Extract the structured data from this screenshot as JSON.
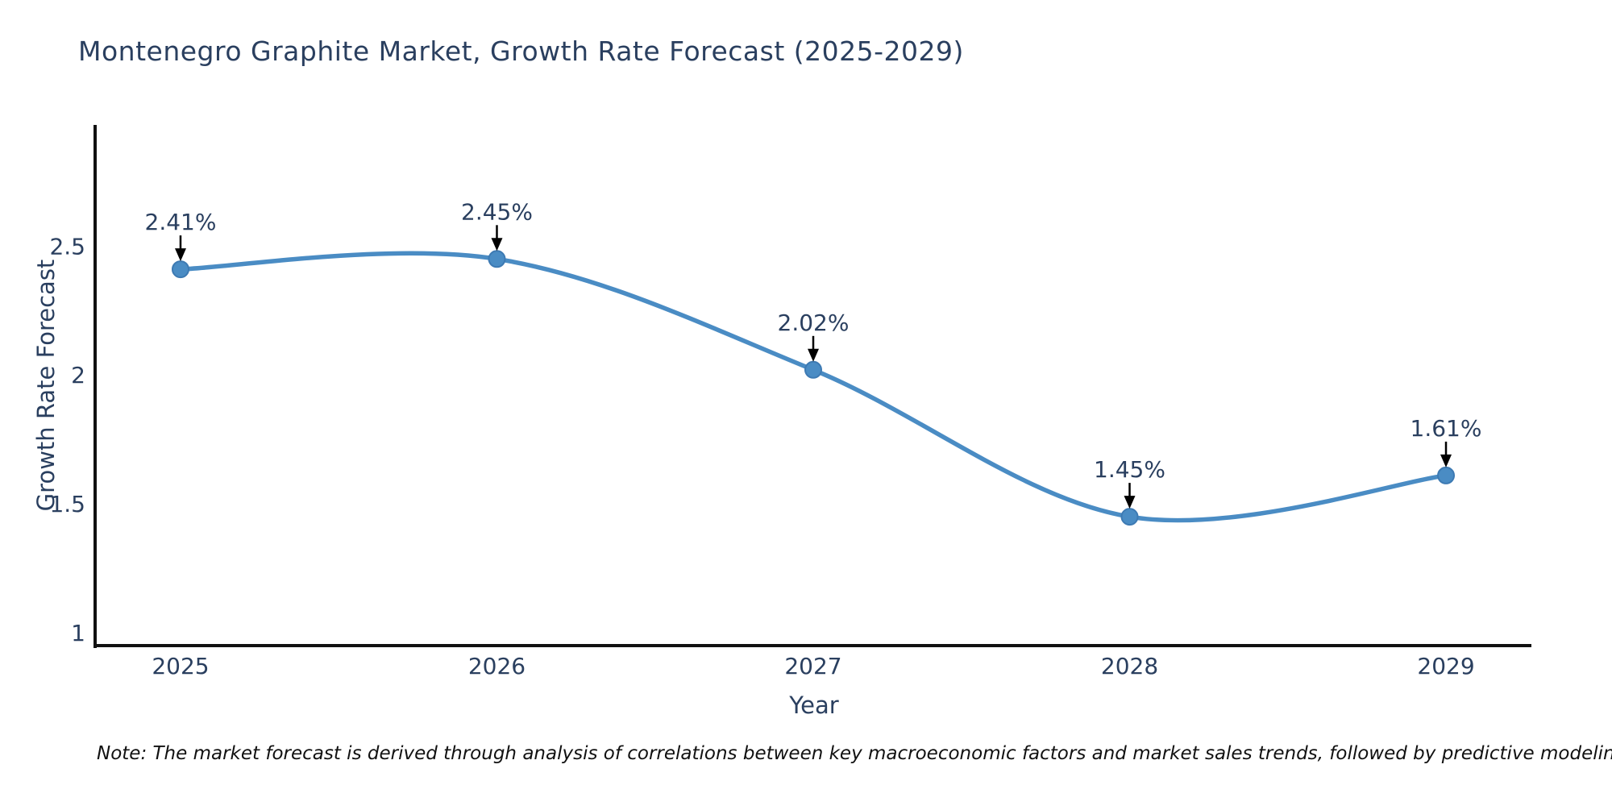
{
  "note": "Note: The market forecast is derived through analysis of correlations between key macroeconomic factors and market sales trends, followed by predictive modeling to project future sales",
  "chart_data": {
    "type": "line",
    "title": "Montenegro Graphite Market, Growth Rate Forecast (2025-2029)",
    "xlabel": "Year",
    "ylabel": "Growth Rate Forecast",
    "x": [
      2025,
      2026,
      2027,
      2028,
      2029
    ],
    "series": [
      {
        "name": "Growth Rate Forecast",
        "values": [
          2.41,
          2.45,
          2.02,
          1.45,
          1.61
        ]
      }
    ],
    "point_labels": [
      "2.41%",
      "2.45%",
      "2.02%",
      "1.45%",
      "1.61%"
    ],
    "xtick_labels": [
      "2025",
      "2026",
      "2027",
      "2028",
      "2029"
    ],
    "xtick_values": [
      2025,
      2026,
      2027,
      2028,
      2029
    ],
    "ytick_labels": [
      "1",
      "1.5",
      "2",
      "2.5"
    ],
    "ytick_values": [
      1,
      1.5,
      2,
      2.5
    ],
    "xlim": [
      2024.73,
      2029.27
    ],
    "ylim": [
      0.95,
      2.97
    ],
    "grid": false,
    "legend": false,
    "line_shape": "spline",
    "colors": {
      "line": "#4a8cc4",
      "marker": "#4a8cc4",
      "marker_edge": "#3d7ab3",
      "axis": "#111111",
      "tick_text": "#2a3f5f",
      "annotation_text": "#2a3f5f",
      "annotation_arrow": "#000000"
    }
  }
}
